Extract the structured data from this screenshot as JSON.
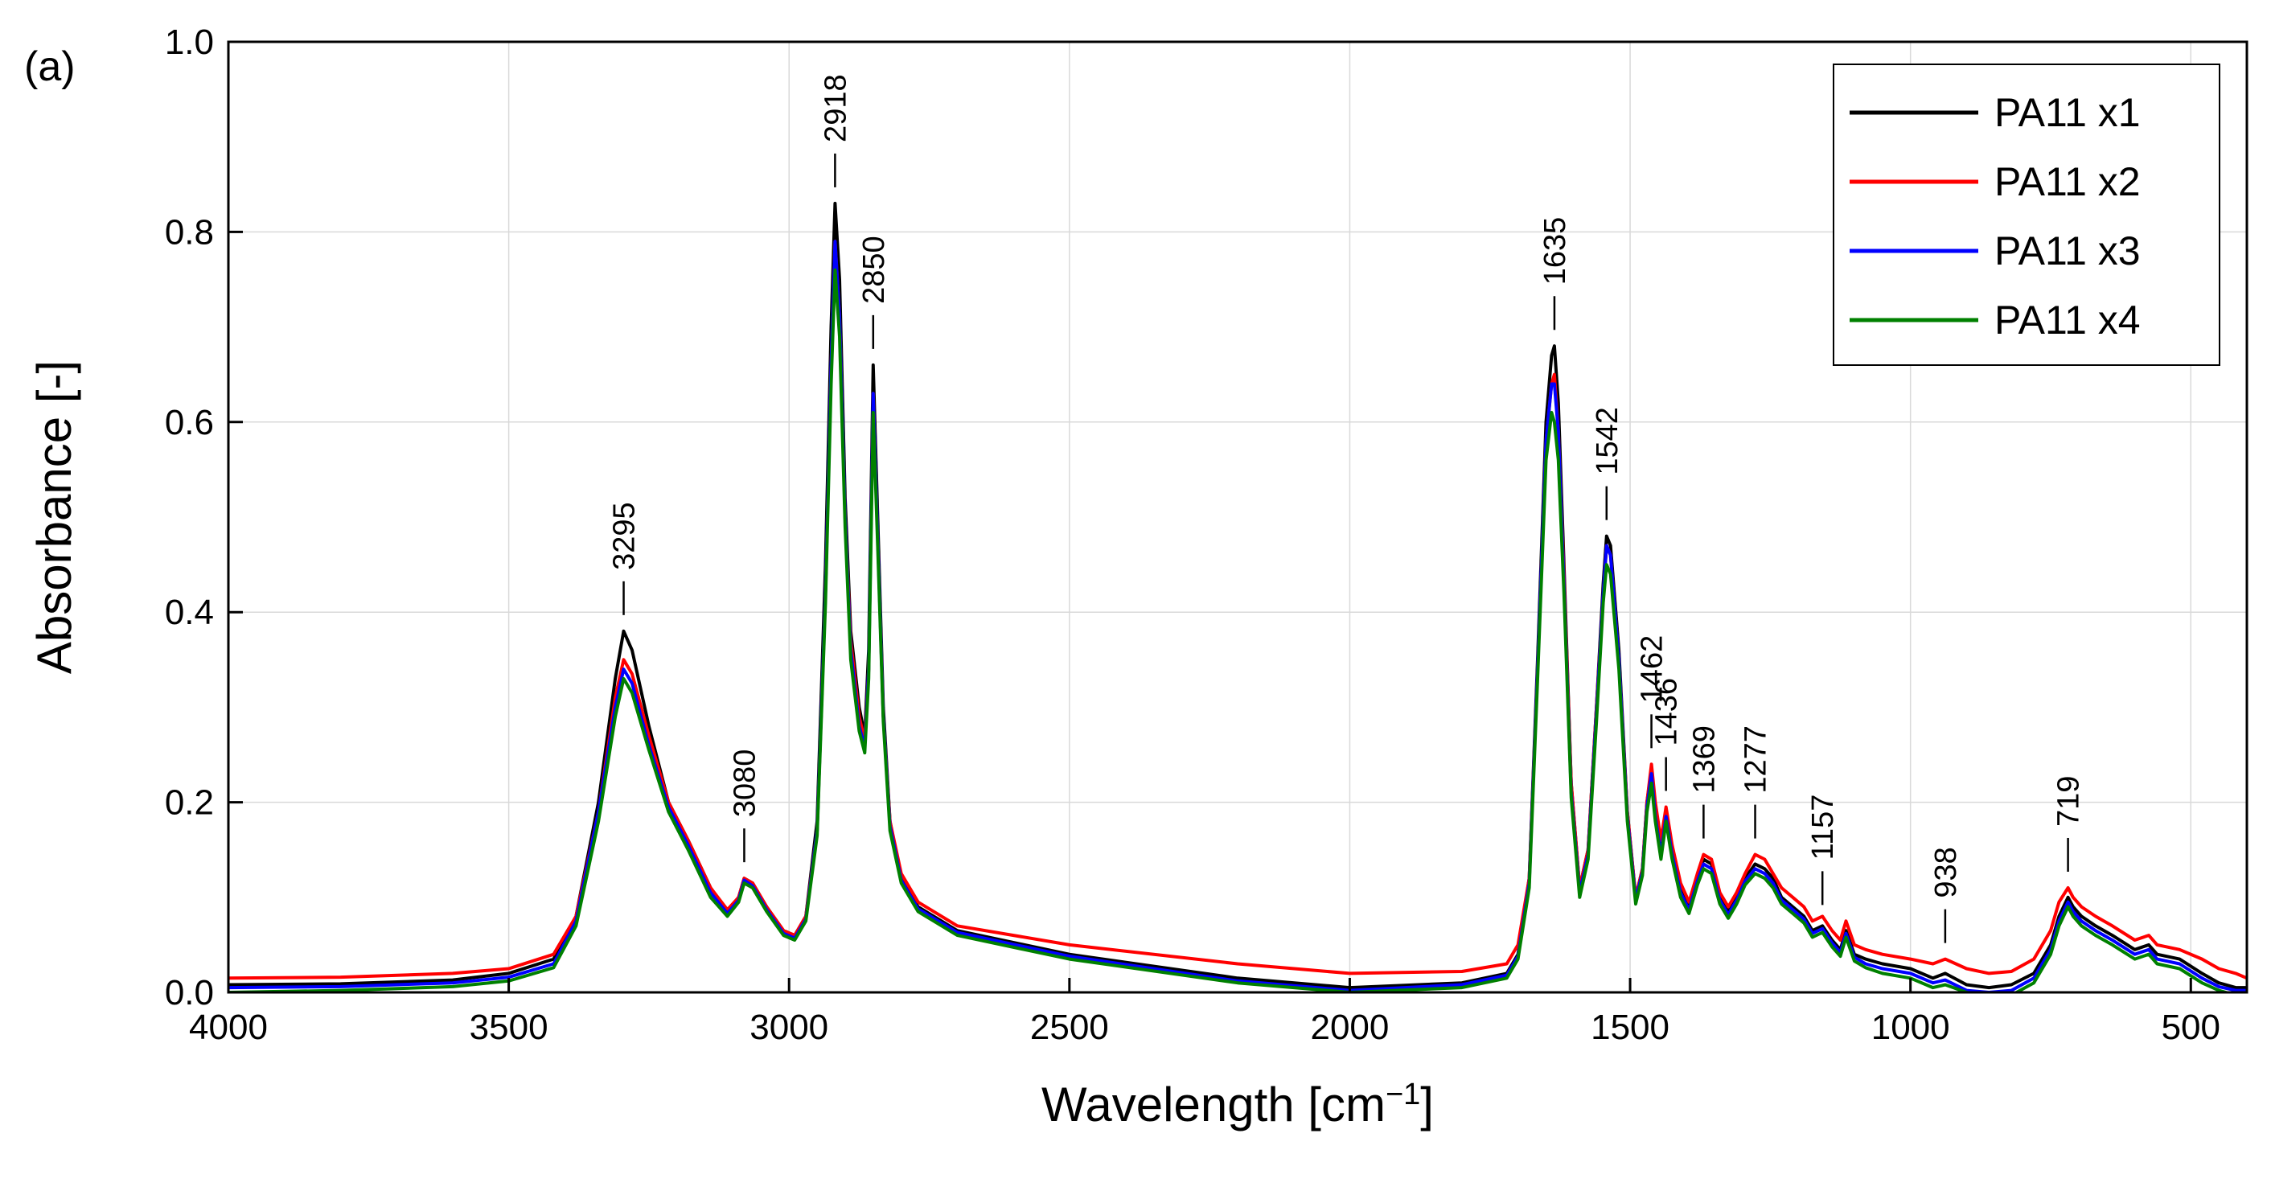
{
  "chart_data": {
    "type": "line",
    "panel_label": "(a)",
    "xlabel": "Wavelength [cm",
    "xlabel_sup": "−1",
    "xlabel_close": "]",
    "ylabel": "Absorbance [-]",
    "xlim": [
      4000,
      400
    ],
    "ylim": [
      0.0,
      1.0
    ],
    "grid": true,
    "x_ticks": [
      4000,
      3500,
      3000,
      2500,
      2000,
      1500,
      1000,
      500
    ],
    "x_tick_labels": [
      "4000",
      "3500",
      "3000",
      "2500",
      "2000",
      "1500",
      "1000",
      "500"
    ],
    "y_ticks": [
      0.0,
      0.2,
      0.4,
      0.6,
      0.8,
      1.0
    ],
    "y_tick_labels": [
      "0.0",
      "0.2",
      "0.4",
      "0.6",
      "0.8",
      "1.0"
    ],
    "legend_position": "top-right",
    "x": [
      4000,
      3800,
      3600,
      3500,
      3420,
      3380,
      3340,
      3310,
      3295,
      3280,
      3250,
      3215,
      3180,
      3140,
      3110,
      3090,
      3080,
      3065,
      3040,
      3010,
      2990,
      2970,
      2950,
      2935,
      2925,
      2918,
      2910,
      2900,
      2890,
      2875,
      2865,
      2858,
      2850,
      2842,
      2832,
      2820,
      2800,
      2770,
      2700,
      2500,
      2200,
      2000,
      1800,
      1720,
      1700,
      1680,
      1665,
      1650,
      1640,
      1635,
      1628,
      1618,
      1605,
      1590,
      1575,
      1560,
      1548,
      1542,
      1535,
      1520,
      1505,
      1490,
      1478,
      1470,
      1462,
      1455,
      1445,
      1436,
      1425,
      1410,
      1395,
      1380,
      1369,
      1355,
      1340,
      1325,
      1310,
      1295,
      1277,
      1260,
      1245,
      1230,
      1210,
      1190,
      1175,
      1157,
      1140,
      1125,
      1115,
      1100,
      1080,
      1050,
      1000,
      960,
      938,
      900,
      860,
      820,
      780,
      750,
      735,
      719,
      710,
      695,
      670,
      640,
      600,
      575,
      560,
      520,
      480,
      450,
      420,
      400
    ],
    "series": [
      {
        "name": "PA11 x1",
        "color": "#000000",
        "values": [
          0.008,
          0.009,
          0.013,
          0.02,
          0.035,
          0.08,
          0.2,
          0.33,
          0.38,
          0.36,
          0.28,
          0.2,
          0.16,
          0.11,
          0.085,
          0.1,
          0.12,
          0.115,
          0.09,
          0.065,
          0.06,
          0.08,
          0.18,
          0.45,
          0.7,
          0.83,
          0.75,
          0.52,
          0.38,
          0.3,
          0.27,
          0.36,
          0.66,
          0.5,
          0.3,
          0.18,
          0.12,
          0.09,
          0.065,
          0.04,
          0.015,
          0.005,
          0.01,
          0.02,
          0.04,
          0.12,
          0.35,
          0.6,
          0.67,
          0.68,
          0.62,
          0.45,
          0.22,
          0.11,
          0.15,
          0.3,
          0.43,
          0.48,
          0.47,
          0.36,
          0.19,
          0.1,
          0.13,
          0.2,
          0.235,
          0.19,
          0.15,
          0.19,
          0.15,
          0.11,
          0.09,
          0.12,
          0.14,
          0.135,
          0.1,
          0.085,
          0.1,
          0.12,
          0.135,
          0.13,
          0.12,
          0.1,
          0.09,
          0.08,
          0.065,
          0.07,
          0.055,
          0.045,
          0.065,
          0.04,
          0.035,
          0.03,
          0.025,
          0.015,
          0.02,
          0.008,
          0.005,
          0.008,
          0.02,
          0.05,
          0.08,
          0.1,
          0.09,
          0.08,
          0.07,
          0.06,
          0.045,
          0.05,
          0.04,
          0.035,
          0.02,
          0.01,
          0.005,
          0.005
        ]
      },
      {
        "name": "PA11 x2",
        "color": "#ff0000",
        "values": [
          0.015,
          0.016,
          0.02,
          0.025,
          0.04,
          0.08,
          0.19,
          0.31,
          0.35,
          0.335,
          0.27,
          0.2,
          0.16,
          0.11,
          0.087,
          0.1,
          0.12,
          0.115,
          0.09,
          0.065,
          0.06,
          0.08,
          0.17,
          0.42,
          0.66,
          0.79,
          0.71,
          0.5,
          0.37,
          0.29,
          0.265,
          0.34,
          0.63,
          0.48,
          0.29,
          0.18,
          0.125,
          0.095,
          0.07,
          0.05,
          0.03,
          0.02,
          0.022,
          0.03,
          0.05,
          0.12,
          0.34,
          0.58,
          0.64,
          0.65,
          0.59,
          0.44,
          0.22,
          0.11,
          0.15,
          0.3,
          0.42,
          0.47,
          0.46,
          0.35,
          0.19,
          0.1,
          0.13,
          0.2,
          0.24,
          0.2,
          0.16,
          0.195,
          0.155,
          0.115,
          0.095,
          0.125,
          0.145,
          0.14,
          0.105,
          0.09,
          0.105,
          0.125,
          0.145,
          0.14,
          0.125,
          0.11,
          0.1,
          0.09,
          0.075,
          0.08,
          0.065,
          0.055,
          0.075,
          0.05,
          0.045,
          0.04,
          0.035,
          0.03,
          0.035,
          0.025,
          0.02,
          0.022,
          0.035,
          0.065,
          0.095,
          0.11,
          0.1,
          0.09,
          0.08,
          0.07,
          0.055,
          0.06,
          0.05,
          0.045,
          0.035,
          0.025,
          0.02,
          0.015
        ]
      },
      {
        "name": "PA11 x3",
        "color": "#0000ff",
        "values": [
          0.005,
          0.006,
          0.01,
          0.016,
          0.03,
          0.075,
          0.19,
          0.3,
          0.34,
          0.325,
          0.26,
          0.195,
          0.155,
          0.105,
          0.083,
          0.097,
          0.118,
          0.112,
          0.087,
          0.062,
          0.057,
          0.077,
          0.17,
          0.42,
          0.66,
          0.79,
          0.71,
          0.5,
          0.36,
          0.28,
          0.258,
          0.34,
          0.63,
          0.48,
          0.29,
          0.175,
          0.118,
          0.088,
          0.063,
          0.038,
          0.012,
          0.002,
          0.008,
          0.018,
          0.038,
          0.115,
          0.34,
          0.58,
          0.64,
          0.64,
          0.59,
          0.43,
          0.21,
          0.105,
          0.145,
          0.295,
          0.42,
          0.47,
          0.46,
          0.35,
          0.185,
          0.097,
          0.127,
          0.195,
          0.23,
          0.185,
          0.145,
          0.185,
          0.145,
          0.105,
          0.087,
          0.117,
          0.135,
          0.13,
          0.097,
          0.082,
          0.097,
          0.117,
          0.13,
          0.125,
          0.115,
          0.097,
          0.087,
          0.077,
          0.062,
          0.067,
          0.052,
          0.042,
          0.062,
          0.037,
          0.03,
          0.025,
          0.02,
          0.01,
          0.013,
          0.002,
          0.0,
          0.002,
          0.015,
          0.045,
          0.075,
          0.095,
          0.085,
          0.075,
          0.065,
          0.055,
          0.04,
          0.045,
          0.035,
          0.03,
          0.015,
          0.006,
          0.002,
          0.002
        ]
      },
      {
        "name": "PA11 x4",
        "color": "#008000",
        "values": [
          0.0,
          0.002,
          0.006,
          0.012,
          0.026,
          0.07,
          0.18,
          0.29,
          0.33,
          0.315,
          0.255,
          0.19,
          0.15,
          0.1,
          0.08,
          0.095,
          0.115,
          0.11,
          0.085,
          0.06,
          0.055,
          0.075,
          0.165,
          0.41,
          0.64,
          0.76,
          0.69,
          0.49,
          0.35,
          0.275,
          0.252,
          0.33,
          0.61,
          0.47,
          0.285,
          0.17,
          0.115,
          0.085,
          0.06,
          0.035,
          0.01,
          0.0,
          0.005,
          0.015,
          0.035,
          0.11,
          0.33,
          0.56,
          0.61,
          0.6,
          0.56,
          0.42,
          0.205,
          0.1,
          0.14,
          0.285,
          0.41,
          0.45,
          0.44,
          0.34,
          0.18,
          0.093,
          0.123,
          0.19,
          0.22,
          0.18,
          0.14,
          0.18,
          0.14,
          0.1,
          0.083,
          0.113,
          0.13,
          0.125,
          0.093,
          0.078,
          0.093,
          0.113,
          0.125,
          0.12,
          0.11,
          0.093,
          0.083,
          0.073,
          0.058,
          0.063,
          0.048,
          0.038,
          0.058,
          0.033,
          0.026,
          0.02,
          0.015,
          0.005,
          0.008,
          0.0,
          -0.005,
          -0.003,
          0.01,
          0.04,
          0.07,
          0.09,
          0.08,
          0.07,
          0.06,
          0.05,
          0.035,
          0.04,
          0.03,
          0.025,
          0.01,
          0.002,
          -0.003,
          -0.003
        ]
      }
    ],
    "annotations": [
      {
        "label": "3295",
        "x": 3295,
        "y": 0.38
      },
      {
        "label": "3080",
        "x": 3080,
        "y": 0.12
      },
      {
        "label": "2918",
        "x": 2918,
        "y": 0.83
      },
      {
        "label": "2850",
        "x": 2850,
        "y": 0.66
      },
      {
        "label": "1635",
        "x": 1635,
        "y": 0.68
      },
      {
        "label": "1542",
        "x": 1542,
        "y": 0.48
      },
      {
        "label": "1462",
        "x": 1462,
        "y": 0.24
      },
      {
        "label": "1436",
        "x": 1436,
        "y": 0.195
      },
      {
        "label": "1369",
        "x": 1369,
        "y": 0.145
      },
      {
        "label": "1277",
        "x": 1277,
        "y": 0.145
      },
      {
        "label": "1157",
        "x": 1157,
        "y": 0.075
      },
      {
        "label": "938",
        "x": 938,
        "y": 0.035
      },
      {
        "label": "719",
        "x": 719,
        "y": 0.11
      }
    ]
  }
}
